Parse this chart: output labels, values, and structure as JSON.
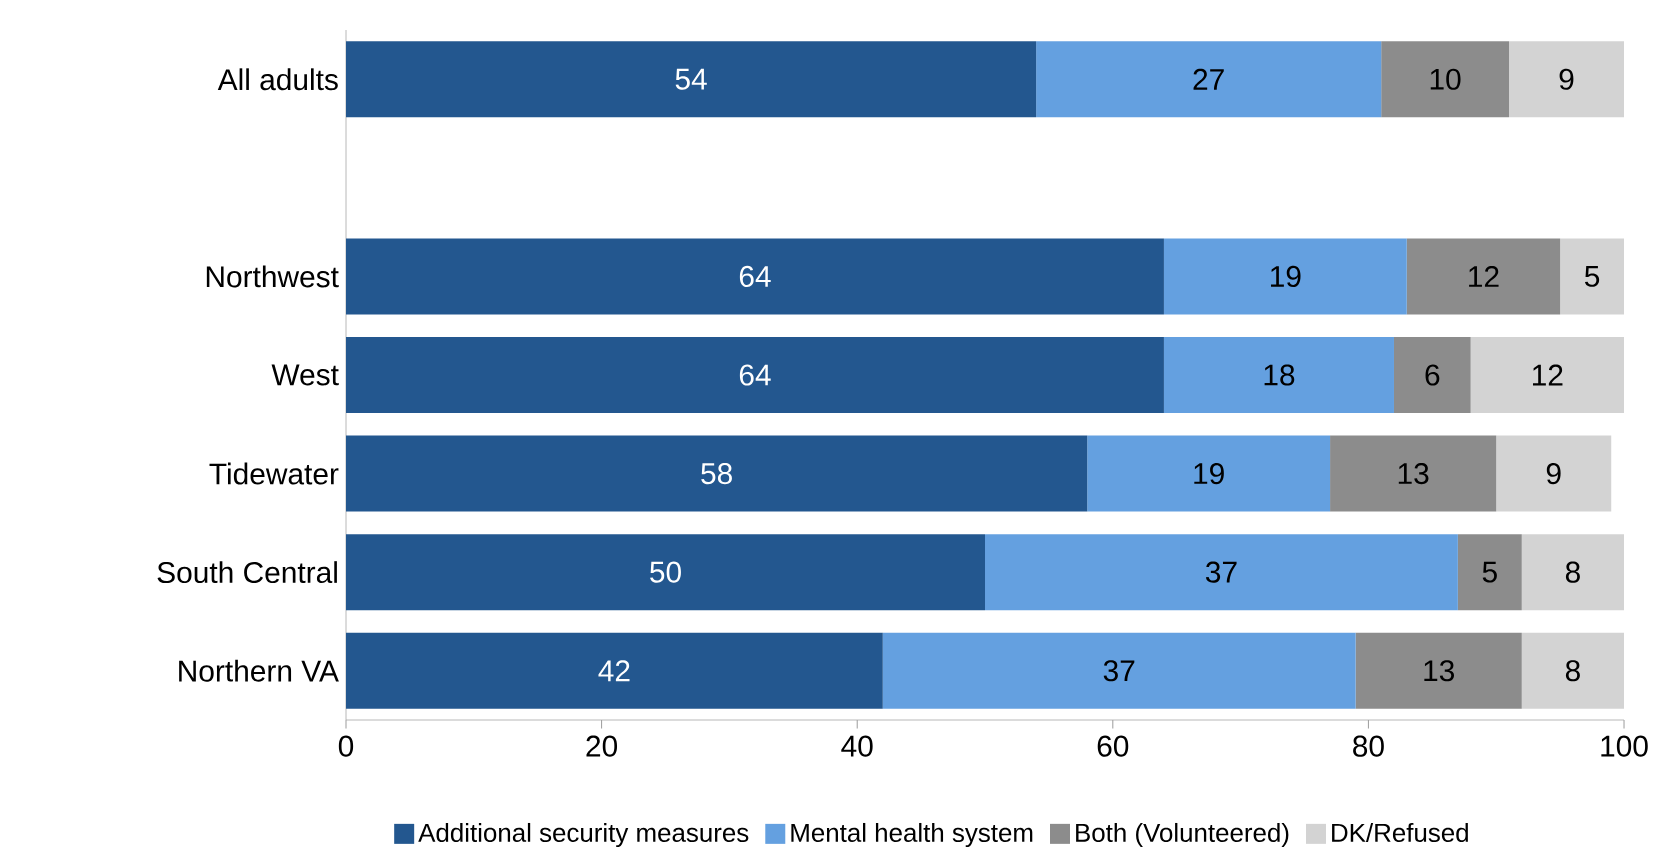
{
  "chart_data": {
    "type": "bar",
    "orientation": "horizontal",
    "stacked": true,
    "data_labels": true,
    "legend": "bottom",
    "categories": [
      "All adults",
      null,
      "Northwest",
      "West",
      "Tidewater",
      "South Central",
      "Northern VA"
    ],
    "series": [
      {
        "name": "Additional security measures",
        "color": "#23578f",
        "values": [
          54,
          null,
          64,
          64,
          58,
          50,
          42
        ]
      },
      {
        "name": "Mental health system",
        "color": "#64a0e0",
        "values": [
          27,
          null,
          19,
          18,
          19,
          37,
          37
        ]
      },
      {
        "name": "Both (Volunteered)",
        "color": "#8c8c8c",
        "values": [
          10,
          null,
          12,
          6,
          13,
          5,
          13
        ]
      },
      {
        "name": "DK/Refused",
        "color": "#d3d3d3",
        "values": [
          9,
          null,
          5,
          12,
          9,
          8,
          8
        ]
      }
    ],
    "xlim": [
      0,
      100
    ],
    "xticks": [
      0,
      20,
      40,
      60,
      80,
      100
    ]
  }
}
